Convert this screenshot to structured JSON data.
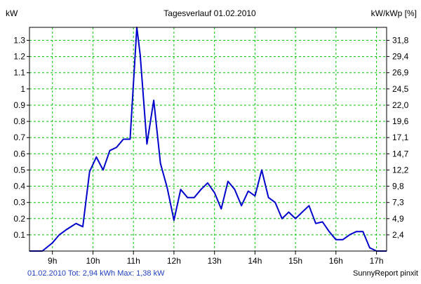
{
  "colors": {
    "series": "#0000cc",
    "grid": "#00c800",
    "footer_summary": "#1f3fbf"
  },
  "footer": {
    "summary": "01.02.2010 Tot: 2,94 kWh Max: 1,38 kW",
    "credit": "SunnyReport pinxit"
  },
  "chart_data": {
    "type": "line",
    "title": "Tagesverlauf 01.02.2010",
    "ylabel_left": "kW",
    "ylabel_right": "kW/kWp [%]",
    "xlim": [
      8.433,
      17.25
    ],
    "ylim": [
      0,
      1.38
    ],
    "grid": true,
    "x_ticks": [
      {
        "value": 9,
        "label": "9h"
      },
      {
        "value": 10,
        "label": "10h"
      },
      {
        "value": 11,
        "label": "11h"
      },
      {
        "value": 12,
        "label": "12h"
      },
      {
        "value": 13,
        "label": "13h"
      },
      {
        "value": 14,
        "label": "14h"
      },
      {
        "value": 15,
        "label": "15h"
      },
      {
        "value": 16,
        "label": "16h"
      },
      {
        "value": 17,
        "label": "17h"
      }
    ],
    "y_ticks_left": [
      {
        "value": 0.1,
        "label": "0.1"
      },
      {
        "value": 0.2,
        "label": "0.2"
      },
      {
        "value": 0.3,
        "label": "0.3"
      },
      {
        "value": 0.4,
        "label": "0.4"
      },
      {
        "value": 0.5,
        "label": "0.5"
      },
      {
        "value": 0.6,
        "label": "0.6"
      },
      {
        "value": 0.7,
        "label": "0.7"
      },
      {
        "value": 0.8,
        "label": "0.8"
      },
      {
        "value": 0.9,
        "label": "0.9"
      },
      {
        "value": 1.0,
        "label": "1"
      },
      {
        "value": 1.1,
        "label": "1.1"
      },
      {
        "value": 1.2,
        "label": "1.2"
      },
      {
        "value": 1.3,
        "label": "1.3"
      }
    ],
    "y_ticks_right": [
      {
        "value": 0.1,
        "label": "2,4"
      },
      {
        "value": 0.2,
        "label": "4,9"
      },
      {
        "value": 0.3,
        "label": "7,3"
      },
      {
        "value": 0.4,
        "label": "9,8"
      },
      {
        "value": 0.5,
        "label": "12,2"
      },
      {
        "value": 0.6,
        "label": "14,7"
      },
      {
        "value": 0.7,
        "label": "17,1"
      },
      {
        "value": 0.8,
        "label": "19,6"
      },
      {
        "value": 0.9,
        "label": "22,0"
      },
      {
        "value": 1.0,
        "label": "24,5"
      },
      {
        "value": 1.1,
        "label": "26,9"
      },
      {
        "value": 1.2,
        "label": "29,4"
      },
      {
        "value": 1.3,
        "label": "31,8"
      }
    ],
    "series": [
      {
        "x": [
          "08:26",
          "08:45",
          "09:00",
          "09:10",
          "09:20",
          "09:35",
          "09:45",
          "09:55",
          "10:05",
          "10:15",
          "10:25",
          "10:35",
          "10:45",
          "10:55",
          "11:05",
          "11:10",
          "11:20",
          "11:30",
          "11:40",
          "11:50",
          "12:00",
          "12:10",
          "12:20",
          "12:30",
          "12:40",
          "12:50",
          "13:00",
          "13:10",
          "13:20",
          "13:30",
          "13:40",
          "13:50",
          "14:00",
          "14:10",
          "14:20",
          "14:30",
          "14:40",
          "14:50",
          "15:00",
          "15:10",
          "15:20",
          "15:30",
          "15:40",
          "15:50",
          "16:00",
          "16:10",
          "16:20",
          "16:30",
          "16:40",
          "16:50",
          "17:00",
          "17:15"
        ],
        "y": [
          0.0,
          0.0,
          0.05,
          0.1,
          0.13,
          0.17,
          0.15,
          0.49,
          0.58,
          0.5,
          0.62,
          0.64,
          0.69,
          0.69,
          1.38,
          1.21,
          0.66,
          0.93,
          0.54,
          0.39,
          0.19,
          0.38,
          0.33,
          0.33,
          0.38,
          0.42,
          0.36,
          0.26,
          0.43,
          0.38,
          0.28,
          0.37,
          0.34,
          0.5,
          0.33,
          0.3,
          0.2,
          0.24,
          0.2,
          0.24,
          0.28,
          0.17,
          0.18,
          0.12,
          0.07,
          0.07,
          0.1,
          0.12,
          0.12,
          0.02,
          0.0,
          0.0
        ]
      }
    ]
  }
}
